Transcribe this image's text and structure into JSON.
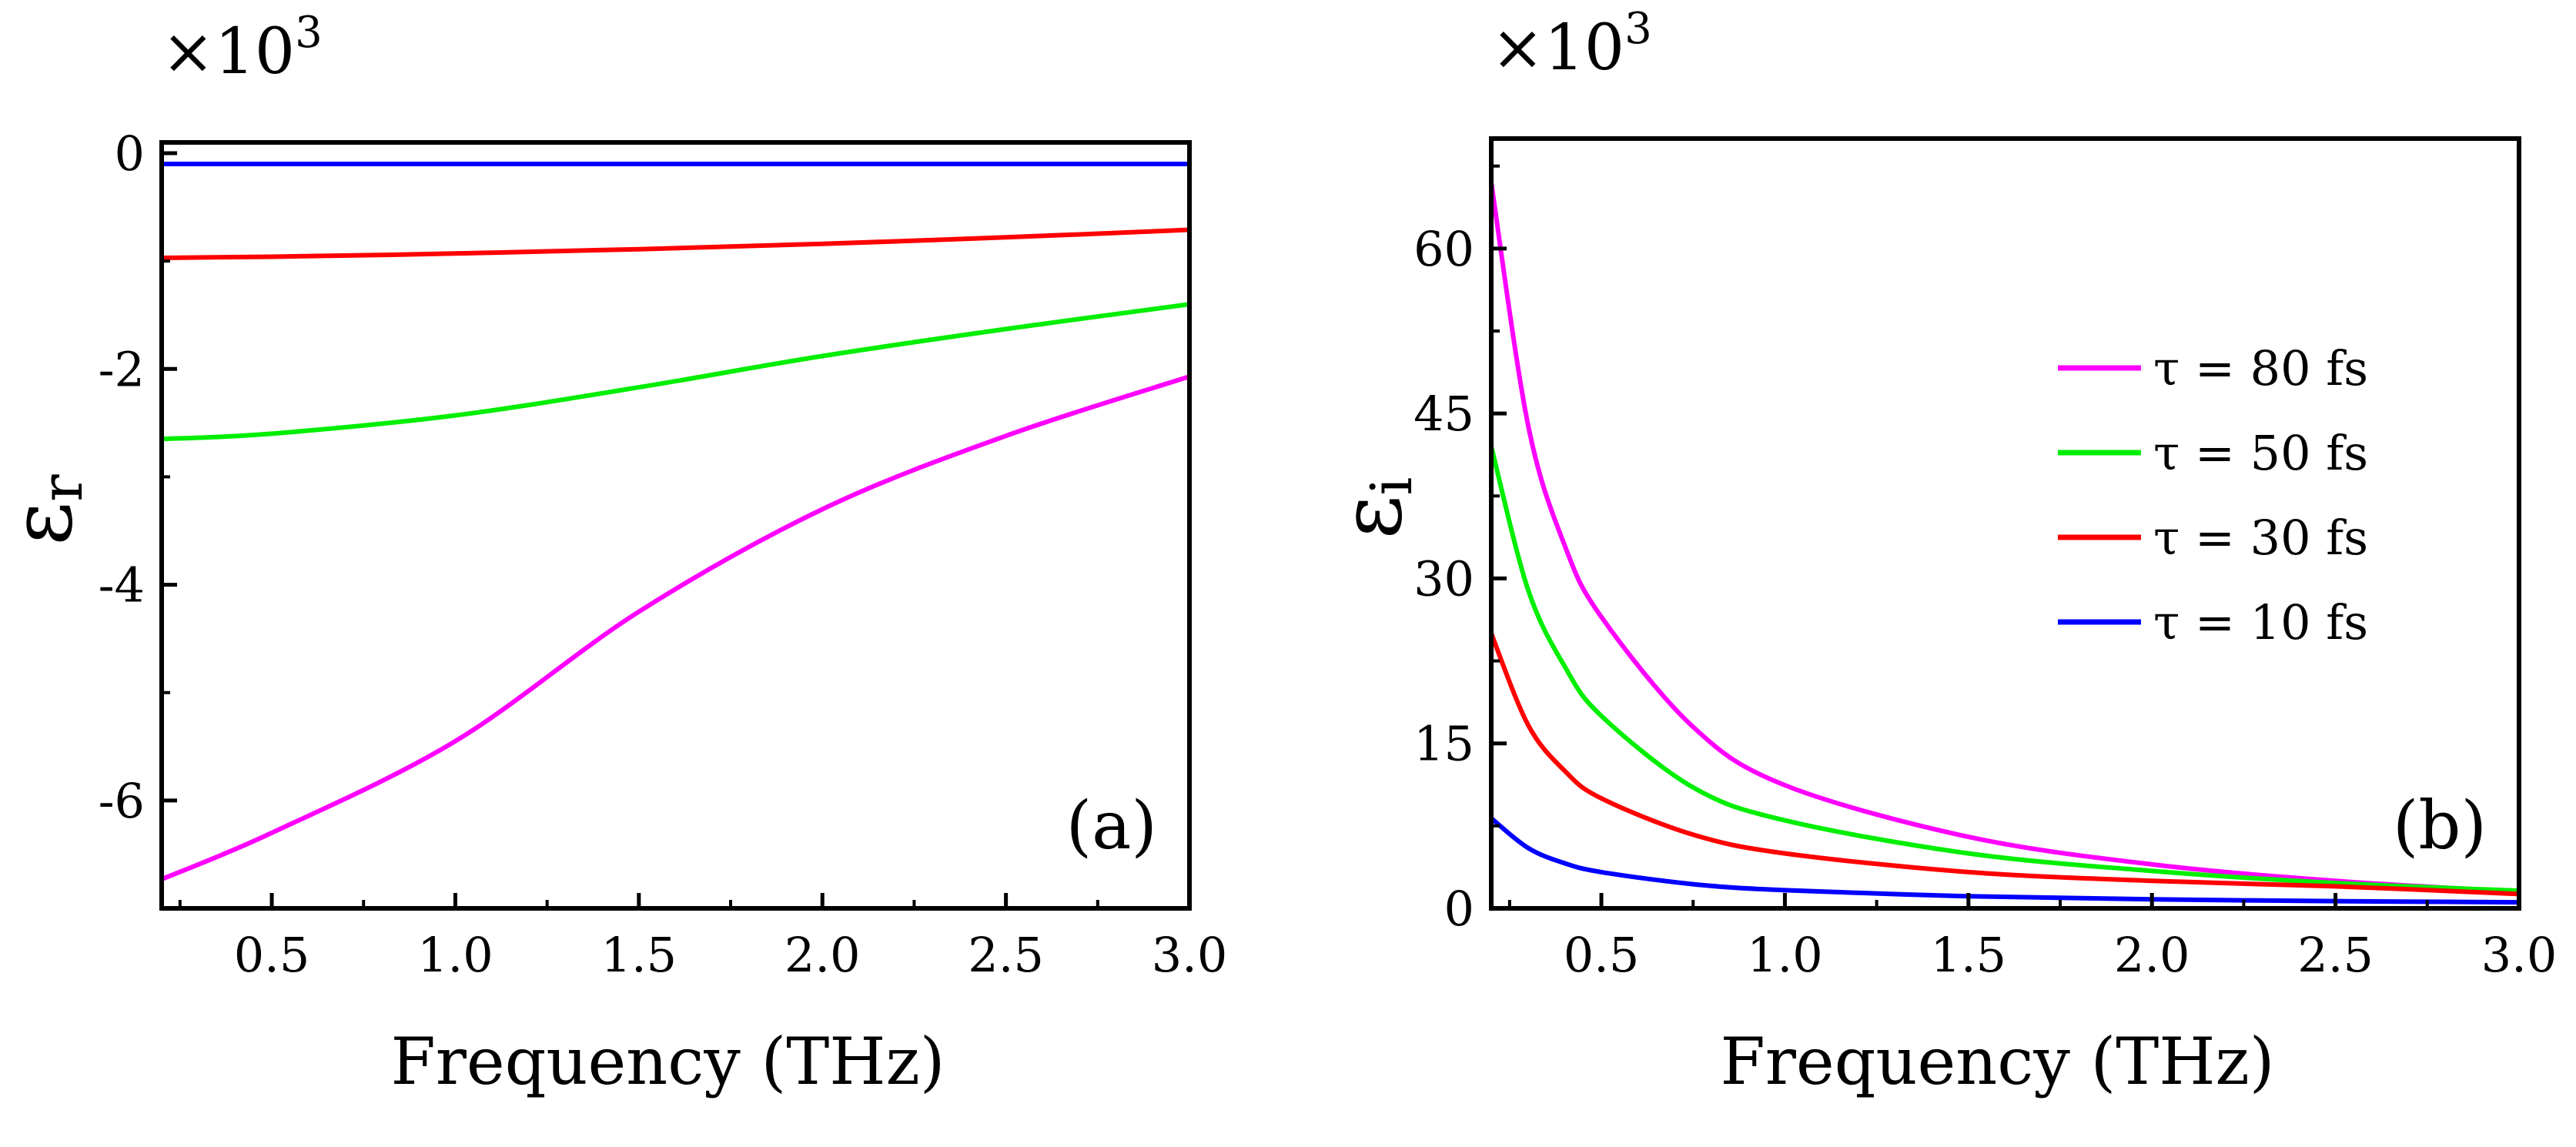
{
  "chart_data": [
    {
      "type": "line",
      "panel_label": "(a)",
      "multiplier_label": "×10",
      "multiplier_exp": "3",
      "xlabel": "Frequency (THz)",
      "ylabel_main": "ε",
      "ylabel_sub": "r",
      "xlim": [
        0.2,
        3.0
      ],
      "ylim": [
        -7.0,
        0.1
      ],
      "xticks": [
        0.5,
        1.0,
        1.5,
        2.0,
        2.5,
        3.0
      ],
      "xtick_labels": [
        "0.5",
        "1.0",
        "1.5",
        "2.0",
        "2.5",
        "3.0"
      ],
      "yticks": [
        -6,
        -4,
        -2,
        0
      ],
      "ytick_labels": [
        "-6",
        "-4",
        "-2",
        "0"
      ],
      "series": [
        {
          "name": "τ = 80 fs",
          "color": "#ff00ff",
          "x": [
            0.2,
            0.5,
            1.0,
            1.5,
            2.0,
            2.5,
            3.0
          ],
          "y": [
            -6.73,
            -6.3,
            -5.45,
            -4.25,
            -3.3,
            -2.62,
            -2.07
          ]
        },
        {
          "name": "τ = 50 fs",
          "color": "#00ee00",
          "x": [
            0.2,
            0.5,
            1.0,
            1.5,
            2.0,
            2.5,
            3.0
          ],
          "y": [
            -2.65,
            -2.6,
            -2.43,
            -2.17,
            -1.88,
            -1.63,
            -1.4
          ]
        },
        {
          "name": "τ = 30 fs",
          "color": "#ff0000",
          "x": [
            0.2,
            0.5,
            1.0,
            1.5,
            2.0,
            2.5,
            3.0
          ],
          "y": [
            -0.97,
            -0.96,
            -0.93,
            -0.89,
            -0.84,
            -0.78,
            -0.71
          ]
        },
        {
          "name": "τ = 10 fs",
          "color": "#0000ff",
          "x": [
            0.2,
            0.5,
            1.0,
            1.5,
            2.0,
            2.5,
            3.0
          ],
          "y": [
            -0.1,
            -0.1,
            -0.1,
            -0.1,
            -0.1,
            -0.1,
            -0.1
          ]
        }
      ]
    },
    {
      "type": "line",
      "panel_label": "(b)",
      "multiplier_label": "×10",
      "multiplier_exp": "3",
      "xlabel": "Frequency (THz)",
      "ylabel_main": "ε",
      "ylabel_sub": "i",
      "xlim": [
        0.2,
        3.0
      ],
      "ylim": [
        0,
        70
      ],
      "xticks": [
        0.5,
        1.0,
        1.5,
        2.0,
        2.5,
        3.0
      ],
      "xtick_labels": [
        "0.5",
        "1.0",
        "1.5",
        "2.0",
        "2.5",
        "3.0"
      ],
      "yticks": [
        0,
        15,
        30,
        45,
        60
      ],
      "ytick_labels": [
        "0",
        "15",
        "30",
        "45",
        "60"
      ],
      "legend_position": "center-right",
      "series": [
        {
          "name": "τ = 80 fs",
          "color": "#ff00ff",
          "x": [
            0.2,
            0.3,
            0.4,
            0.5,
            0.75,
            1.0,
            1.5,
            2.0,
            2.5,
            3.0
          ],
          "y": [
            66.0,
            44.0,
            33.0,
            26.5,
            16.5,
            11.2,
            6.5,
            4.0,
            2.5,
            1.5
          ]
        },
        {
          "name": "τ = 50 fs",
          "color": "#00ee00",
          "x": [
            0.2,
            0.3,
            0.4,
            0.5,
            0.75,
            1.0,
            1.5,
            2.0,
            2.5,
            3.0
          ],
          "y": [
            42.0,
            29.0,
            22.0,
            17.5,
            11.0,
            8.0,
            5.0,
            3.4,
            2.3,
            1.6
          ]
        },
        {
          "name": "τ = 30 fs",
          "color": "#ff0000",
          "x": [
            0.2,
            0.3,
            0.4,
            0.5,
            0.75,
            1.0,
            1.5,
            2.0,
            2.5,
            3.0
          ],
          "y": [
            25.0,
            16.7,
            12.5,
            10.0,
            6.7,
            5.0,
            3.3,
            2.5,
            2.0,
            1.3
          ]
        },
        {
          "name": "τ = 10 fs",
          "color": "#0000ff",
          "x": [
            0.2,
            0.3,
            0.4,
            0.5,
            0.75,
            1.0,
            1.5,
            2.0,
            2.5,
            3.0
          ],
          "y": [
            8.2,
            5.5,
            4.1,
            3.3,
            2.2,
            1.65,
            1.1,
            0.82,
            0.66,
            0.55
          ]
        }
      ]
    }
  ]
}
